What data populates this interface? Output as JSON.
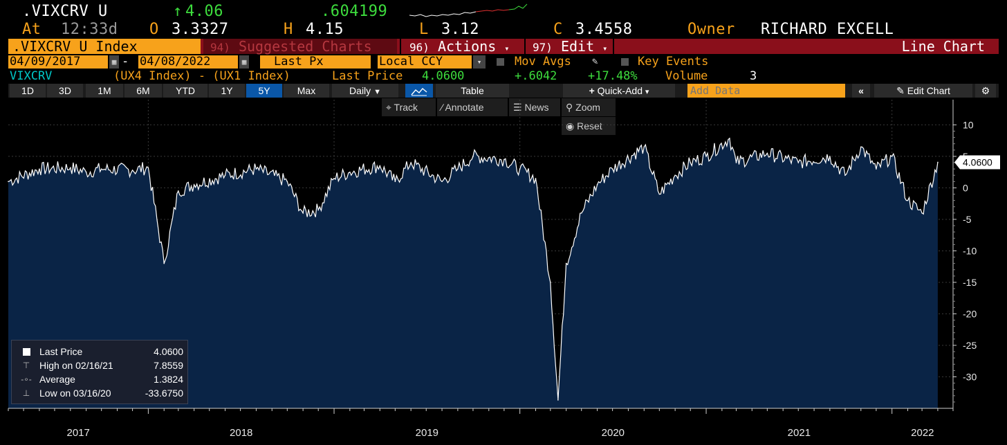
{
  "header": {
    "ticker": ".VIXCRV U",
    "change_arrow": "↑",
    "last": "4.06",
    "change": ".604199",
    "at_label": "At",
    "time": "12:33d",
    "open_label": "O",
    "open": "3.3327",
    "high_label": "H",
    "high": "4.15",
    "low_label": "L",
    "low": "3.12",
    "close_label": "C",
    "close": "3.4558",
    "owner_label": "Owner",
    "owner": "RICHARD EXCELL"
  },
  "menubar": {
    "security": ".VIXCRV U Index",
    "suggested_num": "94)",
    "suggested": "Suggested Charts",
    "actions_num": "96)",
    "actions": "Actions",
    "edit_num": "97)",
    "edit": "Edit",
    "chart_type": "Line Chart"
  },
  "settings": {
    "start_date": "04/09/2017",
    "end_date": "04/08/2022",
    "field": "Last Px",
    "currency": "Local CCY",
    "mov_avgs": "Mov Avgs",
    "key_events": "Key Events"
  },
  "series_info": {
    "name": "VIXCRV",
    "formula": "(UX4 Index) - (UX1 Index)",
    "last_price_label": "Last Price",
    "last_price": "4.0600",
    "change": "+.6042",
    "change_pct": "+17.48%",
    "volume_label": "Volume",
    "volume": "3"
  },
  "toolbar": {
    "periods": [
      "1D",
      "3D",
      "1M",
      "6M",
      "YTD",
      "1Y",
      "5Y",
      "Max"
    ],
    "active_period": "5Y",
    "frequency": "Daily",
    "table": "Table",
    "quick_add": "Quick-Add",
    "add_data_placeholder": "Add Data",
    "edit_chart": "Edit Chart"
  },
  "chart_tools": {
    "track": "Track",
    "annotate": "Annotate",
    "news": "News",
    "zoom": "Zoom",
    "reset": "Reset"
  },
  "legend": {
    "last_price_label": "Last Price",
    "last_price": "4.0600",
    "high_label": "High on 02/16/21",
    "high": "7.8559",
    "average_label": "Average",
    "average": "1.3824",
    "low_label": "Low on 03/16/20",
    "low": "-33.6750"
  },
  "colors": {
    "background": "#000000",
    "area_fill": "#0a2446",
    "line": "#ffffff",
    "amber": "#f7a21b",
    "green": "#3ddc3d",
    "red_bar": "#8a0f1b",
    "active_tab": "#0a57a8"
  },
  "chart_data": {
    "type": "area",
    "series": [
      {
        "name": "VIXCRV",
        "x": [
          "2017-04",
          "2017-06",
          "2017-08",
          "2017-09",
          "2017-10",
          "2017-12",
          "2018-01",
          "2018-02",
          "2018-03",
          "2018-04",
          "2018-06",
          "2018-08",
          "2018-10",
          "2018-11",
          "2018-12",
          "2019-01",
          "2019-02",
          "2019-04",
          "2019-05",
          "2019-06",
          "2019-08",
          "2019-09",
          "2019-10",
          "2019-12",
          "2020-01",
          "2020-02",
          "2020-03",
          "2020-03-16",
          "2020-04",
          "2020-05",
          "2020-06",
          "2020-07",
          "2020-09",
          "2020-10",
          "2020-11",
          "2020-12",
          "2021-01",
          "2021-02-16",
          "2021-03",
          "2021-05",
          "2021-07",
          "2021-09",
          "2021-10",
          "2021-11",
          "2021-12",
          "2022-01",
          "2022-02",
          "2022-03",
          "2022-04"
        ],
        "values": [
          1.0,
          3.0,
          3.2,
          2.5,
          3.0,
          2.8,
          3.2,
          -12.0,
          -0.5,
          0.5,
          2.0,
          3.0,
          1.0,
          -4.0,
          -3.5,
          1.5,
          2.5,
          3.5,
          1.0,
          4.0,
          1.0,
          3.0,
          5.0,
          4.5,
          3.0,
          1.5,
          -15.0,
          -33.675,
          -12.0,
          -4.0,
          0.5,
          3.0,
          6.5,
          -1.0,
          2.0,
          4.0,
          5.0,
          7.8559,
          4.0,
          5.5,
          4.0,
          5.0,
          2.0,
          6.5,
          3.0,
          5.0,
          -2.0,
          -4.0,
          4.06
        ]
      }
    ],
    "x_tick_labels": [
      "2017",
      "2018",
      "2019",
      "2020",
      "2021",
      "2022"
    ],
    "y_ticks": [
      10,
      5,
      0,
      -5,
      -10,
      -15,
      -20,
      -25,
      -30
    ],
    "y_tick_labels": [
      "10",
      "5",
      "0",
      "-5",
      "-10",
      "-15",
      "-20",
      "-25",
      "-30"
    ],
    "ylim": [
      -35,
      14
    ],
    "xlim": [
      "2017-04",
      "2022-05"
    ],
    "last_value_label": "4.0600",
    "grid": true,
    "legend_position": "bottom-left"
  }
}
